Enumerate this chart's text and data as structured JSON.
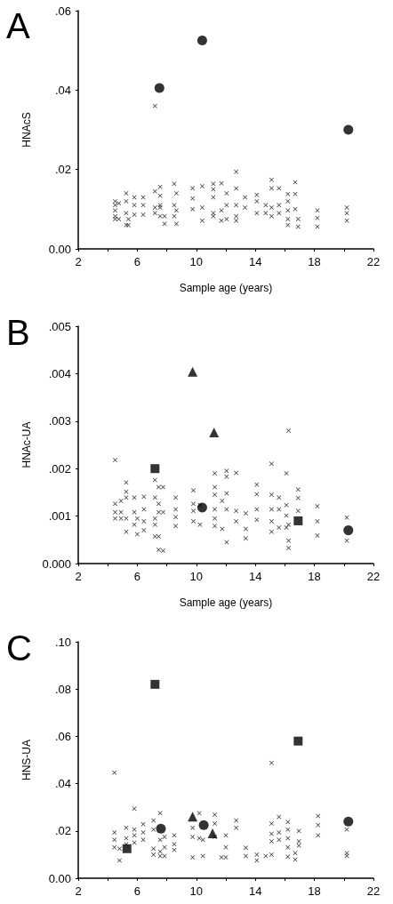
{
  "chart_data": [
    {
      "type": "scatter",
      "title": "A",
      "xlabel": "Sample age (years)",
      "ylabel": "HNAcS",
      "xlim": [
        2,
        22
      ],
      "xticks": [
        2,
        {
          "value": 4,
          "label": null
        },
        6,
        {
          "value": 8,
          "label": null
        },
        10,
        {
          "value": 12,
          "label": null
        },
        14,
        {
          "value": 16,
          "label": null
        },
        18,
        {
          "value": 20,
          "label": null
        },
        22
      ],
      "ylim": [
        0,
        0.06
      ],
      "yticks": [
        {
          "value": 0,
          "label": "0.00"
        },
        {
          "value": 0.02,
          "label": ".02"
        },
        {
          "value": 0.04,
          "label": ".04"
        },
        {
          "value": 0.06,
          "label": ".06"
        }
      ],
      "series": [
        {
          "color": "#000000",
          "marker": "cross",
          "x": [
            4.5,
            4.5,
            4.5,
            4.5,
            4.5,
            4.75,
            4.75,
            5.25,
            5.25,
            5.25,
            5.25,
            5.4,
            5.4,
            5.8,
            5.8,
            5.8,
            6.4,
            6.4,
            6.4,
            7.2,
            7.2,
            7.2,
            7.2,
            7.55,
            7.55,
            7.55,
            7.55,
            7.55,
            7.85,
            7.85,
            8.5,
            8.5,
            8.5,
            8.65,
            8.65,
            8.65,
            9.75,
            9.75,
            9.75,
            10.4,
            10.4,
            10.4,
            11.15,
            11.15,
            11.15,
            11.15,
            11.15,
            11.7,
            11.7,
            11.7,
            12.05,
            12.05,
            12.05,
            12.7,
            12.7,
            12.7,
            12.7,
            12.7,
            13.3,
            13.3,
            14.1,
            14.1,
            14.1,
            14.7,
            14.7,
            15.1,
            15.1,
            15.1,
            15.1,
            15.6,
            15.6,
            15.6,
            16.2,
            16.2,
            16.2,
            16.2,
            16.2,
            16.7,
            16.7,
            16.7,
            16.9,
            16.9,
            18.2,
            18.2,
            18.2,
            20.2,
            20.2,
            20.2
          ],
          "values": [
            0.012,
            0.011,
            0.0097,
            0.0082,
            0.0075,
            0.0115,
            0.0075,
            0.014,
            0.012,
            0.009,
            0.006,
            0.006,
            0.0075,
            0.013,
            0.011,
            0.0086,
            0.013,
            0.011,
            0.0086,
            0.036,
            0.0145,
            0.0104,
            0.009,
            0.0156,
            0.0134,
            0.011,
            0.0104,
            0.0082,
            0.0082,
            0.0063,
            0.0164,
            0.011,
            0.0082,
            0.014,
            0.0097,
            0.0063,
            0.0153,
            0.0127,
            0.01,
            0.0158,
            0.0104,
            0.0071,
            0.0164,
            0.015,
            0.013,
            0.009,
            0.0082,
            0.0165,
            0.0097,
            0.0071,
            0.014,
            0.011,
            0.0075,
            0.0194,
            0.0152,
            0.011,
            0.0082,
            0.0071,
            0.013,
            0.0104,
            0.0136,
            0.012,
            0.009,
            0.011,
            0.009,
            0.0174,
            0.0153,
            0.0104,
            0.0082,
            0.0153,
            0.011,
            0.009,
            0.0138,
            0.012,
            0.0097,
            0.0075,
            0.006,
            0.0168,
            0.0138,
            0.01,
            0.0075,
            0.0056,
            0.0097,
            0.0078,
            0.0056,
            0.0104,
            0.009,
            0.0071
          ]
        },
        {
          "color": "#000000",
          "marker": "circle",
          "x": [
            7.5,
            10.4,
            20.3
          ],
          "values": [
            0.0405,
            0.0525,
            0.03
          ]
        }
      ]
    },
    {
      "type": "scatter",
      "title": "B",
      "xlabel": "Sample age (years)",
      "ylabel": "HNAc-UA",
      "xlim": [
        2,
        22
      ],
      "xticks": [
        2,
        {
          "value": 4,
          "label": null
        },
        6,
        {
          "value": 8,
          "label": null
        },
        10,
        {
          "value": 12,
          "label": null
        },
        14,
        {
          "value": 16,
          "label": null
        },
        18,
        {
          "value": 20,
          "label": null
        },
        22
      ],
      "ylim": [
        0,
        0.005
      ],
      "yticks": [
        {
          "value": 0,
          "label": "0.000"
        },
        {
          "value": 0.001,
          "label": ".001"
        },
        {
          "value": 0.002,
          "label": ".002"
        },
        {
          "value": 0.003,
          "label": ".003"
        },
        {
          "value": 0.004,
          "label": ".004"
        },
        {
          "value": 0.005,
          "label": ".005"
        }
      ],
      "series": [
        {
          "color": "#000000",
          "marker": "cross",
          "x": [
            4.5,
            4.5,
            4.5,
            4.5,
            4.9,
            4.9,
            4.9,
            5.25,
            5.25,
            5.25,
            5.25,
            5.25,
            5.8,
            5.8,
            5.8,
            6.0,
            6.0,
            6.45,
            6.45,
            6.45,
            6.45,
            7.2,
            7.2,
            7.2,
            7.2,
            7.2,
            7.45,
            7.45,
            7.45,
            7.45,
            7.45,
            7.75,
            7.75,
            7.75,
            8.6,
            8.6,
            8.6,
            8.6,
            9.8,
            9.8,
            9.8,
            9.8,
            10.25,
            10.25,
            11.25,
            11.25,
            11.25,
            11.25,
            11.25,
            11.25,
            11.75,
            11.75,
            12.05,
            12.05,
            12.05,
            12.05,
            12.05,
            12.7,
            12.7,
            12.7,
            13.35,
            13.35,
            13.35,
            14.1,
            14.1,
            14.1,
            14.1,
            15.1,
            15.1,
            15.1,
            15.1,
            15.1,
            15.6,
            15.6,
            15.6,
            16.1,
            16.1,
            16.1,
            16.1,
            16.25,
            16.25,
            16.25,
            16.25,
            16.9,
            16.9,
            16.9,
            18.2,
            18.2,
            18.2,
            20.2,
            20.2
          ],
          "values": [
            0.00218,
            0.00126,
            0.00108,
            0.00095,
            0.00132,
            0.00108,
            0.00095,
            0.00171,
            0.00151,
            0.00139,
            0.00067,
            0.00095,
            0.00139,
            0.00108,
            0.00082,
            0.00095,
            0.00062,
            0.00141,
            0.00114,
            0.00089,
            0.0007,
            0.00176,
            0.00139,
            0.00095,
            0.00057,
            0.00082,
            0.00161,
            0.00126,
            0.00108,
            0.00057,
            0.00029,
            0.00161,
            0.00108,
            0.00027,
            0.00139,
            0.00114,
            0.00098,
            0.00079,
            0.00154,
            0.00126,
            0.00111,
            0.00089,
            0.00123,
            0.00082,
            0.0019,
            0.00161,
            0.00145,
            0.00114,
            0.00095,
            0.00079,
            0.00132,
            0.00073,
            0.00195,
            0.00183,
            0.00148,
            0.00114,
            0.00045,
            0.00191,
            0.00111,
            0.00089,
            0.00106,
            0.00073,
            0.00053,
            0.00166,
            0.00146,
            0.00114,
            0.00092,
            0.0021,
            0.00145,
            0.00114,
            0.00089,
            0.00067,
            0.00139,
            0.00114,
            0.00076,
            0.0019,
            0.00123,
            0.00101,
            0.00076,
            0.0028,
            0.00048,
            0.00033,
            0.00082,
            0.00156,
            0.00138,
            0.00111,
            0.00121,
            0.00089,
            0.00059,
            0.00097,
            0.00048
          ]
        },
        {
          "color": "#000000",
          "marker": "circle",
          "x": [
            10.4,
            20.3
          ],
          "values": [
            0.00118,
            0.0007
          ]
        },
        {
          "color": "#000000",
          "marker": "triangle",
          "x": [
            9.75,
            11.2
          ],
          "values": [
            0.00404,
            0.00276
          ]
        },
        {
          "color": "#000000",
          "marker": "square",
          "x": [
            7.2,
            16.9
          ],
          "values": [
            0.002,
            0.0009
          ]
        }
      ]
    },
    {
      "type": "scatter",
      "title": "C",
      "ylabel": "HNS-UA",
      "xlim": [
        2,
        22
      ],
      "xticks": [
        2,
        {
          "value": 4,
          "label": null
        },
        6,
        {
          "value": 8,
          "label": null
        },
        10,
        {
          "value": 12,
          "label": null
        },
        14,
        {
          "value": 16,
          "label": null
        },
        18,
        {
          "value": 20,
          "label": null
        },
        22
      ],
      "ylim": [
        0,
        0.1
      ],
      "yticks": [
        {
          "value": 0,
          "label": "0.00"
        },
        {
          "value": 0.02,
          "label": ".02"
        },
        {
          "value": 0.04,
          "label": ".04"
        },
        {
          "value": 0.06,
          "label": ".06"
        },
        {
          "value": 0.08,
          "label": ".08"
        },
        {
          "value": 0.1,
          "label": ".10"
        }
      ],
      "series": [
        {
          "color": "#000000",
          "marker": "cross",
          "x": [
            4.45,
            4.45,
            4.45,
            4.45,
            4.8,
            4.8,
            5.25,
            5.25,
            5.25,
            5.8,
            5.8,
            5.8,
            5.8,
            6.4,
            6.4,
            6.4,
            7.1,
            7.1,
            7.1,
            7.1,
            7.55,
            7.55,
            7.55,
            7.55,
            7.85,
            7.85,
            7.85,
            8.5,
            8.5,
            8.5,
            9.75,
            9.75,
            9.75,
            10.2,
            10.2,
            10.45,
            10.45,
            11.25,
            11.25,
            11.25,
            11.7,
            12.0,
            12.0,
            12.0,
            12.7,
            12.7,
            13.35,
            13.35,
            14.1,
            14.1,
            14.7,
            15.1,
            15.1,
            15.1,
            15.1,
            15.1,
            15.6,
            15.6,
            15.6,
            16.2,
            16.2,
            16.2,
            16.2,
            16.2,
            16.7,
            16.7,
            16.95,
            16.95,
            16.95,
            18.25,
            18.25,
            18.25,
            20.2,
            20.2,
            20.2
          ],
          "values": [
            0.0446,
            0.0194,
            0.0163,
            0.0131,
            0.0125,
            0.0075,
            0.0213,
            0.0169,
            0.0144,
            0.0294,
            0.0206,
            0.0181,
            0.015,
            0.0228,
            0.0194,
            0.0163,
            0.0244,
            0.0206,
            0.0125,
            0.01,
            0.0275,
            0.0163,
            0.0113,
            0.0094,
            0.0175,
            0.0131,
            0.0094,
            0.0181,
            0.0144,
            0.0119,
            0.0213,
            0.0175,
            0.0088,
            0.0275,
            0.0169,
            0.0163,
            0.0094,
            0.0269,
            0.0231,
            0.0175,
            0.0088,
            0.0181,
            0.0131,
            0.0088,
            0.0244,
            0.0213,
            0.0129,
            0.0094,
            0.01,
            0.0075,
            0.0094,
            0.0488,
            0.0231,
            0.0188,
            0.0156,
            0.01,
            0.0259,
            0.0194,
            0.0163,
            0.0238,
            0.0206,
            0.0169,
            0.0131,
            0.0091,
            0.0106,
            0.0079,
            0.02,
            0.0156,
            0.0138,
            0.0263,
            0.0225,
            0.0181,
            0.0206,
            0.0106,
            0.0094
          ]
        },
        {
          "color": "#000000",
          "marker": "circle",
          "x": [
            7.6,
            10.5,
            20.3
          ],
          "values": [
            0.021,
            0.0225,
            0.024
          ]
        },
        {
          "color": "#000000",
          "marker": "triangle",
          "x": [
            9.75,
            11.1
          ],
          "values": [
            0.026,
            0.019
          ]
        },
        {
          "color": "#000000",
          "marker": "square",
          "x": [
            7.2,
            16.9,
            5.3
          ],
          "values": [
            0.082,
            0.058,
            0.0125
          ]
        }
      ]
    }
  ]
}
